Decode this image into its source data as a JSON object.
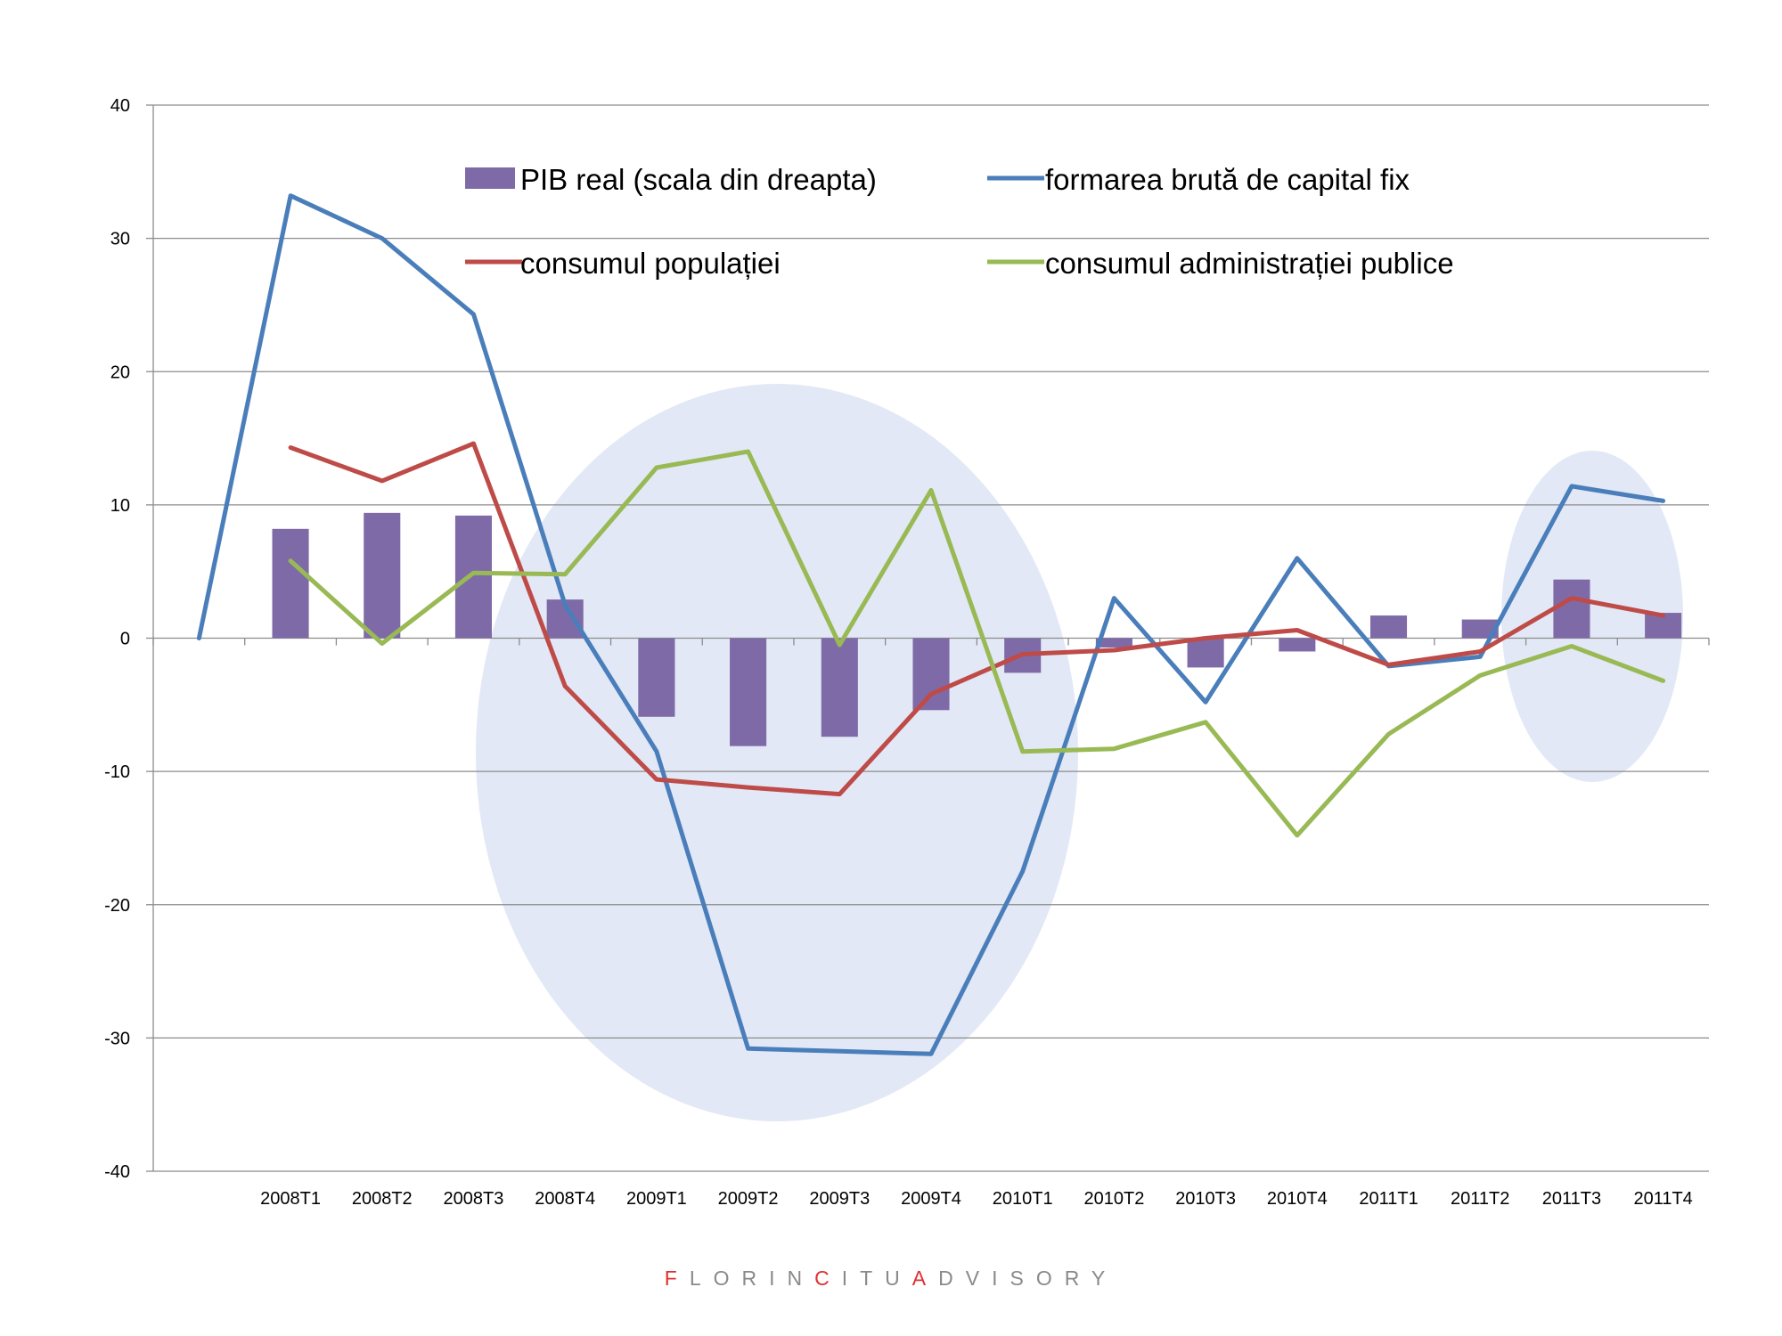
{
  "chart_data": {
    "type": "bar",
    "categories": [
      "2008T1",
      "2008T2",
      "2008T3",
      "2008T4",
      "2009T1",
      "2009T2",
      "2009T3",
      "2009T4",
      "2010T1",
      "2010T2",
      "2010T3",
      "2010T4",
      "2011T1",
      "2011T2",
      "2011T3",
      "2011T4"
    ],
    "ylim": [
      -40,
      40
    ],
    "yticks": [
      40,
      30,
      20,
      10,
      0,
      -10,
      -20,
      -30,
      -40
    ],
    "grid": true,
    "legend_position": "top",
    "series": [
      {
        "name": "PIB real (scala din dreapta)",
        "type": "bar",
        "color": "#7f6aa8",
        "values": [
          8.2,
          9.4,
          9.2,
          2.9,
          -5.9,
          -8.1,
          -7.4,
          -5.4,
          -2.6,
          -0.7,
          -2.2,
          -1.0,
          1.7,
          1.4,
          4.4,
          1.9
        ]
      },
      {
        "name": "formarea brută de capital fix",
        "type": "line",
        "color": "#4a7ebb",
        "x": [
          "",
          "2008T1",
          "2008T2",
          "2008T3",
          "2008T4",
          "2009T1",
          "2009T2",
          "2009T3",
          "2009T4",
          "2010T1",
          "2010T2",
          "2010T3",
          "2010T4",
          "2011T1",
          "2011T2",
          "2011T3",
          "2011T4"
        ],
        "values": [
          0,
          33.2,
          30.0,
          24.3,
          2.5,
          -8.5,
          -30.8,
          -31.0,
          -31.2,
          -17.5,
          3.0,
          -4.8,
          6.0,
          -2.1,
          -1.4,
          11.4,
          10.3
        ]
      },
      {
        "name": "consumul populației",
        "type": "line",
        "color": "#be4b48",
        "values": [
          14.3,
          11.8,
          14.6,
          -3.6,
          -10.6,
          -11.2,
          -11.7,
          -4.2,
          -1.2,
          -0.9,
          0.0,
          0.6,
          -2.0,
          -1.0,
          3.0,
          1.7
        ]
      },
      {
        "name": "consumul administrației publice",
        "type": "line",
        "color": "#98b954",
        "values": [
          5.8,
          -0.4,
          4.9,
          4.8,
          12.8,
          14.0,
          -0.5,
          11.1,
          -8.5,
          -8.3,
          -6.3,
          -14.8,
          -7.2,
          -2.8,
          -0.6,
          -3.2
        ]
      }
    ]
  },
  "branding": {
    "parts": [
      {
        "text": "F",
        "highlight": true
      },
      {
        "text": "LORIN",
        "highlight": false
      },
      {
        "text": "C",
        "highlight": true
      },
      {
        "text": "ITU",
        "highlight": false
      },
      {
        "text": "A",
        "highlight": true
      },
      {
        "text": "DVISORY",
        "highlight": false
      }
    ]
  }
}
